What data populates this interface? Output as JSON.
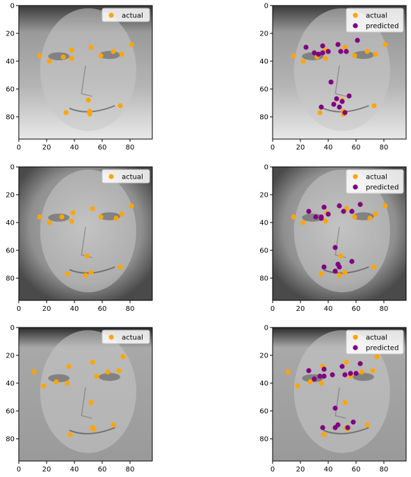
{
  "chart_data": [
    {
      "type": "scatter",
      "position": "row-1-left",
      "face_image": "grayscale-face-man-glasses-1",
      "xlim": [
        0,
        96
      ],
      "ylim": [
        96,
        0
      ],
      "xticks": [
        0,
        20,
        40,
        60,
        80
      ],
      "yticks": [
        0,
        20,
        40,
        60,
        80
      ],
      "legend": "top-right",
      "series": [
        {
          "name": "actual",
          "color": "#ffa500",
          "points": [
            [
              15,
              36
            ],
            [
              22,
              40
            ],
            [
              32,
              37
            ],
            [
              38,
              38
            ],
            [
              38,
              32
            ],
            [
              52,
              30
            ],
            [
              59,
              36
            ],
            [
              68,
              33
            ],
            [
              74,
              35
            ],
            [
              81,
              28
            ],
            [
              50,
              68
            ],
            [
              34,
              77
            ],
            [
              51,
              76
            ],
            [
              51,
              78
            ],
            [
              73,
              72
            ]
          ]
        }
      ]
    },
    {
      "type": "scatter",
      "position": "row-1-right",
      "face_image": "grayscale-face-man-glasses-1",
      "xlim": [
        0,
        96
      ],
      "ylim": [
        96,
        0
      ],
      "xticks": [
        0,
        20,
        40,
        60,
        80
      ],
      "yticks": [
        0,
        20,
        40,
        60,
        80
      ],
      "legend": "top-right",
      "series": [
        {
          "name": "actual",
          "color": "#ffa500",
          "points": [
            [
              15,
              36
            ],
            [
              22,
              40
            ],
            [
              32,
              37
            ],
            [
              38,
              38
            ],
            [
              38,
              32
            ],
            [
              52,
              30
            ],
            [
              59,
              36
            ],
            [
              68,
              33
            ],
            [
              74,
              35
            ],
            [
              81,
              28
            ],
            [
              50,
              68
            ],
            [
              34,
              77
            ],
            [
              51,
              76
            ],
            [
              51,
              78
            ],
            [
              73,
              72
            ]
          ]
        },
        {
          "name": "predicted",
          "color": "#800080",
          "points": [
            [
              24,
              30
            ],
            [
              30,
              34
            ],
            [
              33,
              35
            ],
            [
              36,
              34
            ],
            [
              36,
              29
            ],
            [
              40,
              33
            ],
            [
              47,
              28
            ],
            [
              49,
              33
            ],
            [
              53,
              33
            ],
            [
              61,
              25
            ],
            [
              42,
              55
            ],
            [
              46,
              67
            ],
            [
              44,
              71
            ],
            [
              50,
              69
            ],
            [
              55,
              65
            ],
            [
              48,
              73
            ],
            [
              52,
              77
            ],
            [
              35,
              73
            ]
          ]
        }
      ]
    },
    {
      "type": "scatter",
      "position": "row-2-left",
      "face_image": "grayscale-face-woman-2",
      "xlim": [
        0,
        96
      ],
      "ylim": [
        96,
        0
      ],
      "xticks": [
        0,
        20,
        40,
        60,
        80
      ],
      "yticks": [
        0,
        20,
        40,
        60,
        80
      ],
      "legend": "top-right",
      "series": [
        {
          "name": "actual",
          "color": "#ffa500",
          "points": [
            [
              15,
              36
            ],
            [
              22,
              40
            ],
            [
              31,
              36
            ],
            [
              38,
              39
            ],
            [
              39,
              33
            ],
            [
              53,
              30
            ],
            [
              59,
              36
            ],
            [
              70,
              37
            ],
            [
              74,
              34
            ],
            [
              81,
              28
            ],
            [
              49,
              64
            ],
            [
              35,
              77
            ],
            [
              48,
              78
            ],
            [
              52,
              76
            ],
            [
              73,
              72
            ]
          ]
        }
      ]
    },
    {
      "type": "scatter",
      "position": "row-2-right",
      "face_image": "grayscale-face-woman-2",
      "xlim": [
        0,
        96
      ],
      "ylim": [
        96,
        0
      ],
      "xticks": [
        0,
        20,
        40,
        60,
        80
      ],
      "yticks": [
        0,
        20,
        40,
        60,
        80
      ],
      "legend": "top-right",
      "series": [
        {
          "name": "actual",
          "color": "#ffa500",
          "points": [
            [
              15,
              36
            ],
            [
              22,
              40
            ],
            [
              31,
              36
            ],
            [
              38,
              39
            ],
            [
              39,
              33
            ],
            [
              53,
              30
            ],
            [
              59,
              36
            ],
            [
              70,
              37
            ],
            [
              74,
              34
            ],
            [
              81,
              28
            ],
            [
              49,
              64
            ],
            [
              35,
              77
            ],
            [
              48,
              78
            ],
            [
              52,
              76
            ],
            [
              73,
              72
            ]
          ]
        },
        {
          "name": "predicted",
          "color": "#800080",
          "points": [
            [
              26,
              32
            ],
            [
              31,
              36
            ],
            [
              35,
              37
            ],
            [
              35,
              36
            ],
            [
              37,
              29
            ],
            [
              40,
              34
            ],
            [
              48,
              28
            ],
            [
              51,
              32
            ],
            [
              57,
              32
            ],
            [
              63,
              27
            ],
            [
              45,
              58
            ],
            [
              37,
              72
            ],
            [
              47,
              70
            ],
            [
              45,
              75
            ],
            [
              57,
              68
            ],
            [
              48,
              72
            ]
          ]
        }
      ]
    },
    {
      "type": "scatter",
      "position": "row-3-left",
      "face_image": "grayscale-face-woman-3",
      "xlim": [
        0,
        96
      ],
      "ylim": [
        96,
        0
      ],
      "xticks": [
        0,
        20,
        40,
        60,
        80
      ],
      "yticks": [
        0,
        20,
        40,
        60,
        80
      ],
      "legend": "top-right",
      "series": [
        {
          "name": "actual",
          "color": "#ffa500",
          "points": [
            [
              11,
              32
            ],
            [
              18,
              42
            ],
            [
              27,
              39
            ],
            [
              35,
              40
            ],
            [
              36,
              28
            ],
            [
              53,
              25
            ],
            [
              56,
              35
            ],
            [
              64,
              32
            ],
            [
              72,
              31
            ],
            [
              75,
              21
            ],
            [
              52,
              54
            ],
            [
              37,
              77
            ],
            [
              53,
              72
            ],
            [
              54,
              73
            ],
            [
              68,
              70
            ]
          ]
        }
      ]
    },
    {
      "type": "scatter",
      "position": "row-3-right",
      "face_image": "grayscale-face-woman-3",
      "xlim": [
        0,
        96
      ],
      "ylim": [
        96,
        0
      ],
      "xticks": [
        0,
        20,
        40,
        60,
        80
      ],
      "yticks": [
        0,
        20,
        40,
        60,
        80
      ],
      "legend": "top-right",
      "series": [
        {
          "name": "actual",
          "color": "#ffa500",
          "points": [
            [
              11,
              32
            ],
            [
              18,
              42
            ],
            [
              27,
              39
            ],
            [
              35,
              40
            ],
            [
              36,
              28
            ],
            [
              53,
              25
            ],
            [
              56,
              35
            ],
            [
              64,
              32
            ],
            [
              72,
              31
            ],
            [
              75,
              21
            ],
            [
              52,
              54
            ],
            [
              37,
              77
            ],
            [
              53,
              72
            ],
            [
              54,
              73
            ],
            [
              68,
              70
            ]
          ]
        },
        {
          "name": "predicted",
          "color": "#800080",
          "points": [
            [
              26,
              31
            ],
            [
              30,
              37
            ],
            [
              34,
              35
            ],
            [
              37,
              35
            ],
            [
              37,
              30
            ],
            [
              43,
              34
            ],
            [
              50,
              28
            ],
            [
              52,
              34
            ],
            [
              56,
              33
            ],
            [
              63,
              26
            ],
            [
              45,
              58
            ],
            [
              36,
              72
            ],
            [
              45,
              72
            ],
            [
              47,
              70
            ],
            [
              54,
              72
            ],
            [
              58,
              68
            ],
            [
              60,
              33
            ]
          ]
        }
      ]
    }
  ]
}
